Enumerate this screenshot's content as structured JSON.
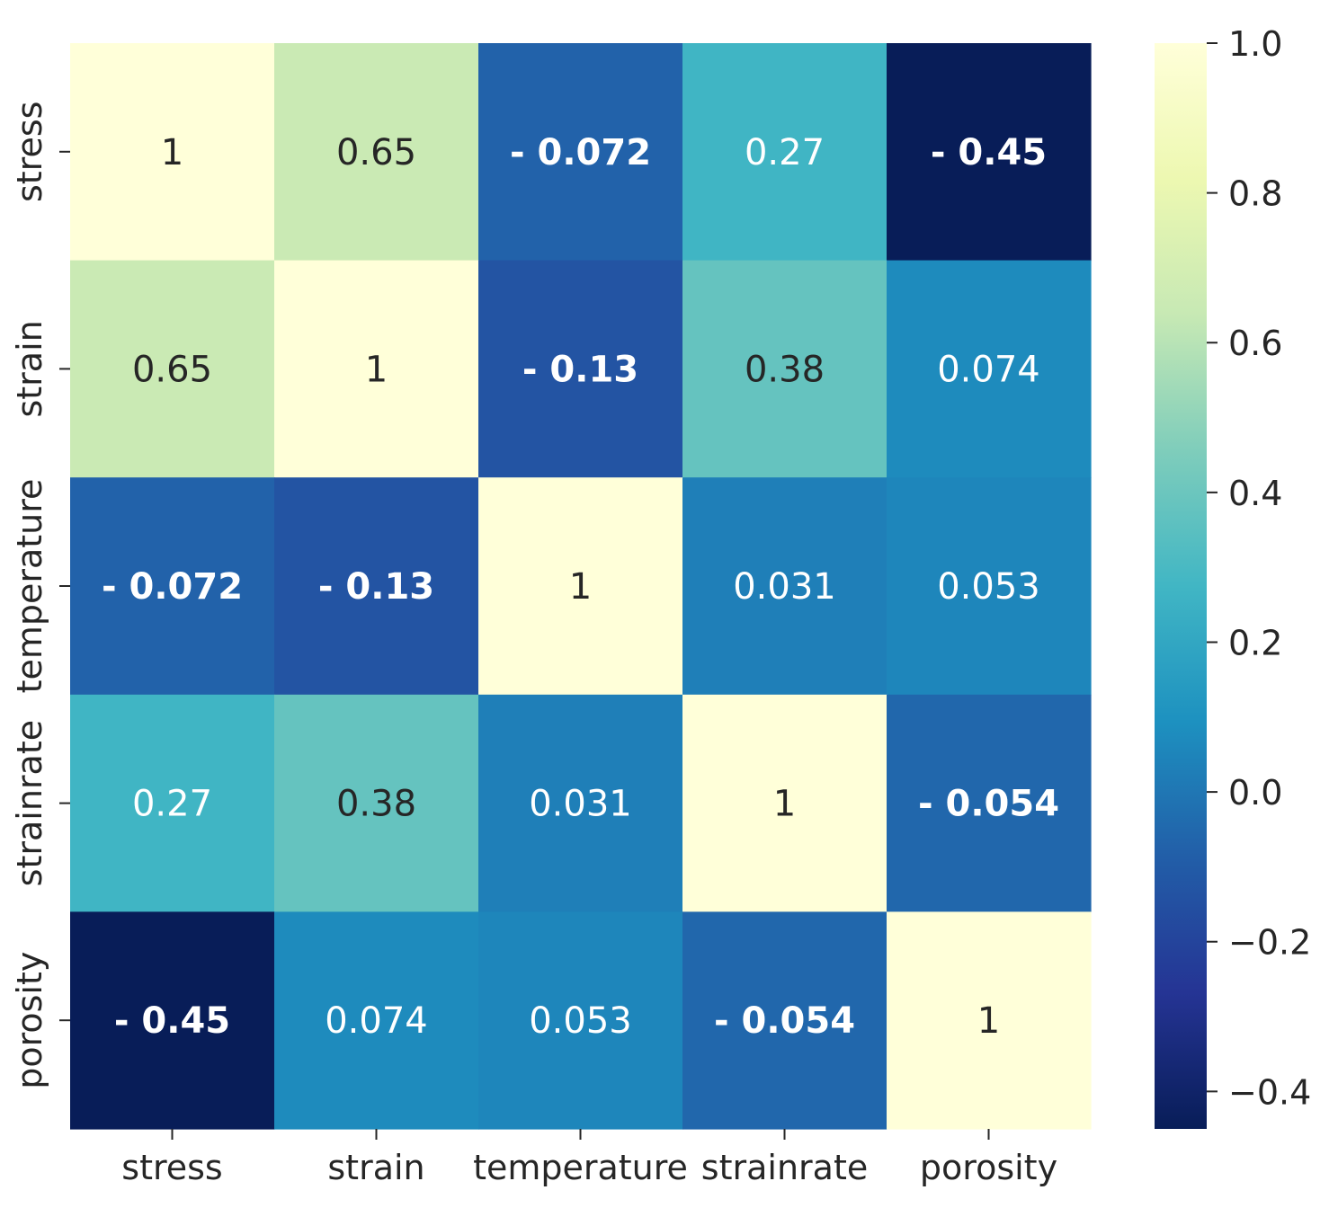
{
  "chart_data": {
    "type": "heatmap",
    "title": "",
    "xlabel": "",
    "ylabel": "",
    "rows": [
      "stress",
      "strain",
      "temperature",
      "strainrate",
      "porosity"
    ],
    "columns": [
      "stress",
      "strain",
      "temperature",
      "strainrate",
      "porosity"
    ],
    "values": [
      [
        1,
        0.65,
        -0.072,
        0.27,
        -0.45
      ],
      [
        0.65,
        1,
        -0.13,
        0.38,
        0.074
      ],
      [
        -0.072,
        -0.13,
        1,
        0.031,
        0.053
      ],
      [
        0.27,
        0.38,
        0.031,
        1,
        -0.054
      ],
      [
        -0.45,
        0.074,
        0.053,
        -0.054,
        1
      ]
    ],
    "annotations": [
      [
        "1",
        "0.65",
        "- 0.072",
        "0.27",
        "- 0.45"
      ],
      [
        "0.65",
        "1",
        "- 0.13",
        "0.38",
        "0.074"
      ],
      [
        "- 0.072",
        "- 0.13",
        "1",
        "0.031",
        "0.053"
      ],
      [
        "0.27",
        "0.38",
        "0.031",
        "1",
        "- 0.054"
      ],
      [
        "- 0.45",
        "0.074",
        "0.053",
        "- 0.054",
        "1"
      ]
    ],
    "colormap": "YlGnBu",
    "vmin": -0.45,
    "vmax": 1.0,
    "colorbar": {
      "ticks": [
        1.0,
        0.8,
        0.6,
        0.4,
        0.2,
        0.0,
        -0.2,
        -0.4
      ],
      "tick_labels": [
        "1.0",
        "0.8",
        "0.6",
        "0.4",
        "0.2",
        "0.0",
        "−0.2",
        "−0.4"
      ]
    },
    "dark_text_color": "#262626",
    "light_text_color": "#ffffff"
  }
}
